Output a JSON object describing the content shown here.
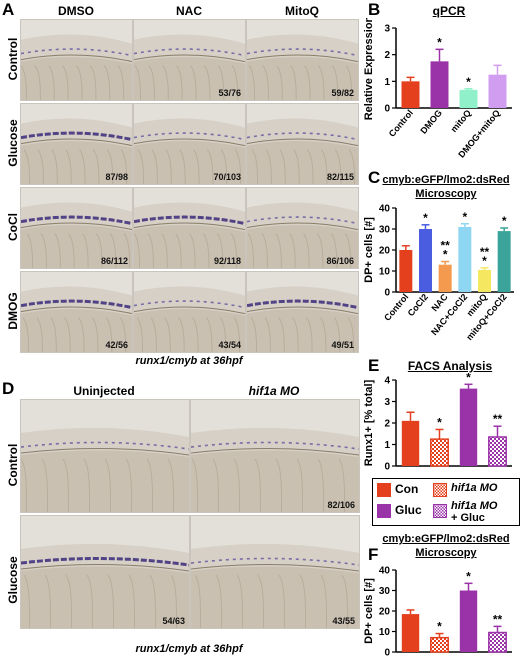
{
  "panel_A": {
    "letter": "A",
    "columns": [
      "DMSO",
      "NAC",
      "MitoQ"
    ],
    "rows": [
      {
        "label": "Control",
        "counts": [
          "",
          "53/76",
          "59/82"
        ]
      },
      {
        "label": "Glucose",
        "counts": [
          "87/98",
          "70/103",
          "82/115"
        ]
      },
      {
        "label": "CoCl",
        "counts": [
          "86/112",
          "92/118",
          "86/106"
        ]
      },
      {
        "label": "DMOG",
        "counts": [
          "42/56",
          "43/54",
          "49/51"
        ]
      }
    ],
    "caption": "runx1/cmyb at 36hpf"
  },
  "panel_D": {
    "letter": "D",
    "columns": [
      "Uninjected",
      "hif1a MO"
    ],
    "rows": [
      {
        "label": "Control",
        "counts": [
          "",
          "82/106"
        ]
      },
      {
        "label": "Glucose",
        "counts": [
          "54/63",
          "43/55"
        ]
      }
    ],
    "caption": "runx1/cmyb at 36hpf"
  },
  "chart_B": {
    "letter": "B",
    "title": "qPCR"
  },
  "chart_C": {
    "letter": "C",
    "title_line1": "cmyb:eGFP/lmo2:dsRed",
    "title_line2": "Microscopy"
  },
  "chart_E": {
    "letter": "E",
    "title": "FACS Analysis"
  },
  "legend_E": {
    "con": "Con",
    "gluc": "Gluc",
    "mo": "hif1a MO",
    "mo_gluc_1": "hif1a MO",
    "mo_gluc_2": "+ Gluc"
  },
  "chart_F": {
    "letter": "F",
    "title_line1": "cmyb:eGFP/lmo2:dsRed",
    "title_line2": "Microscopy"
  },
  "colors": {
    "red": "#e5401e",
    "purple": "#9b33a8",
    "mint": "#8ff0c9",
    "lavender": "#d19df0",
    "blue": "#4a5ce0",
    "orange": "#f39a4e",
    "skyblue": "#8fd6f2",
    "yellow": "#f5e860",
    "teal": "#3aa39a"
  },
  "chart_data": [
    {
      "id": "B",
      "type": "bar",
      "categories": [
        "Control",
        "DMOG",
        "mitoQ",
        "DMOG+mitoQ"
      ],
      "values": [
        1.0,
        1.75,
        0.68,
        1.25
      ],
      "errors": [
        0.15,
        0.45,
        0.04,
        0.35
      ],
      "colors": [
        "#e5401e",
        "#9b33a8",
        "#8ff0c9",
        "#d19df0"
      ],
      "annotations": [
        "",
        "*",
        "*",
        ""
      ],
      "ylabel": "Relative Expression",
      "ylim": [
        0,
        3
      ],
      "yticks": [
        0,
        1,
        2,
        3
      ]
    },
    {
      "id": "C",
      "type": "bar",
      "categories": [
        "Control",
        "CoCl2",
        "NAC",
        "NAC+CoCl2",
        "mitoQ",
        "mitoQ+CoCl2"
      ],
      "values": [
        20,
        30,
        13,
        31,
        10.5,
        29
      ],
      "errors": [
        2,
        2,
        1.5,
        1.5,
        1,
        1.5
      ],
      "colors": [
        "#e5401e",
        "#4a5ce0",
        "#f39a4e",
        "#8fd6f2",
        "#f5e860",
        "#3aa39a"
      ],
      "annotations": [
        "",
        "*",
        "**\n*",
        "*",
        "**\n*",
        "*"
      ],
      "ylabel": "DP+ cells [#]",
      "ylim": [
        0,
        40
      ],
      "yticks": [
        0,
        10,
        20,
        30,
        40
      ]
    },
    {
      "id": "E",
      "type": "bar",
      "categories": [
        "Con",
        "hif1a MO",
        "Gluc",
        "hif1a MO + Gluc"
      ],
      "values": [
        2.1,
        1.25,
        3.6,
        1.35
      ],
      "errors": [
        0.4,
        0.45,
        0.2,
        0.5
      ],
      "colors": [
        "#e5401e",
        "#e5401e",
        "#9b33a8",
        "#9b33a8"
      ],
      "patterns": [
        false,
        true,
        false,
        true
      ],
      "annotations": [
        "",
        "*",
        "*",
        "**"
      ],
      "ylabel": "Runx1+ [% total]",
      "ylim": [
        0,
        4
      ],
      "yticks": [
        0,
        1,
        2,
        3,
        4
      ]
    },
    {
      "id": "F",
      "type": "bar",
      "categories": [
        "Con",
        "hif1a MO",
        "Gluc",
        "hif1a MO + Gluc"
      ],
      "values": [
        18.5,
        7,
        30,
        9.5
      ],
      "errors": [
        2,
        2,
        3.5,
        3
      ],
      "colors": [
        "#e5401e",
        "#e5401e",
        "#9b33a8",
        "#9b33a8"
      ],
      "patterns": [
        false,
        true,
        false,
        true
      ],
      "annotations": [
        "",
        "*",
        "*",
        "**"
      ],
      "ylabel": "DP+ cells [#]",
      "ylim": [
        0,
        40
      ],
      "yticks": [
        0,
        10,
        20,
        30,
        40
      ]
    }
  ]
}
